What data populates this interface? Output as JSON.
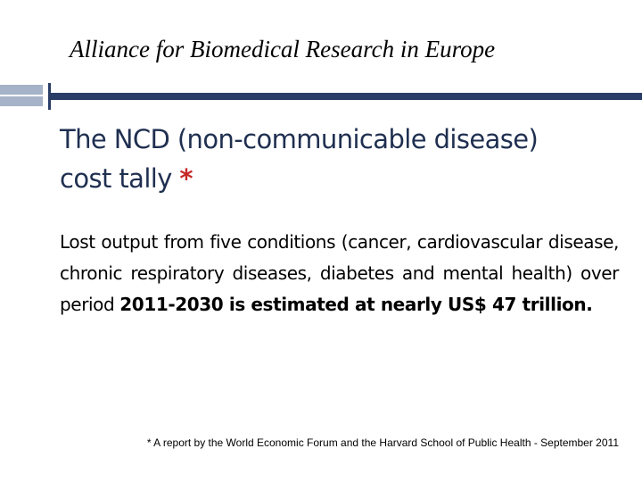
{
  "slide": {
    "org_title": "Alliance for Biomedical Research in Europe",
    "heading": {
      "line1": "The NCD (non-communicable disease)",
      "line2_text": "cost tally ",
      "asterisk": "*"
    },
    "body": {
      "normal": "Lost output from five conditions (cancer, cardiovascular disease, chronic respiratory diseases, diabetes and mental health) over period ",
      "bold": "2011-2030 is estimated at nearly US$ 47 trillion."
    },
    "footnote": "* A report by the World Economic Forum and the Harvard School of Public Health - September 2011"
  },
  "colors": {
    "heading": "#1f2f50",
    "asterisk": "#c62828",
    "bar_dark": "#2a3d66",
    "bar_light": "#a6b2c8"
  }
}
